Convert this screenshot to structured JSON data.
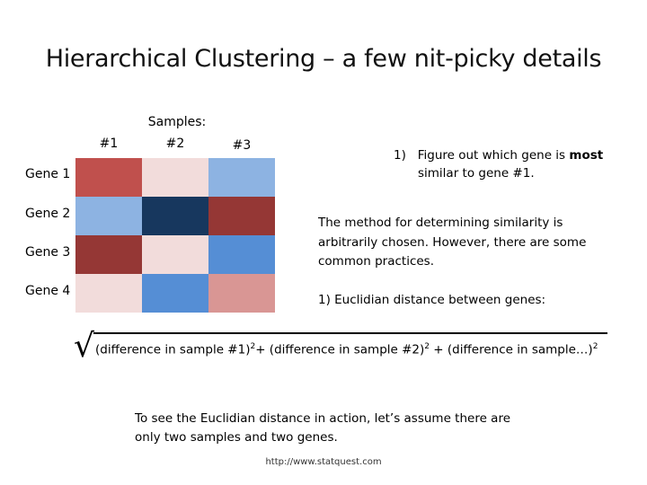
{
  "title": "Hierarchical Clustering – a few nit-picky details",
  "heatmap": {
    "header": "Samples:",
    "columns": [
      "#1",
      "#2",
      "#3"
    ],
    "rows": [
      {
        "label": "Gene 1",
        "colors": [
          "#c0504d",
          "#f2dcdb",
          "#8db3e2"
        ]
      },
      {
        "label": "Gene 2",
        "colors": [
          "#8db3e2",
          "#17375e",
          "#953735"
        ]
      },
      {
        "label": "Gene 3",
        "colors": [
          "#953735",
          "#f2dcdb",
          "#558ed5"
        ]
      },
      {
        "label": "Gene 4",
        "colors": [
          "#f2dcdb",
          "#558ed5",
          "#d99694"
        ]
      }
    ]
  },
  "step1": {
    "number": "1)",
    "text_a": "Figure out which gene is ",
    "text_bold": "most",
    "text_b": "similar to gene #1."
  },
  "method_text": "The method for determining similarity is arbitrarily chosen. However, there are some common practices.",
  "euclid_item": "1)  Euclidian distance between genes:",
  "formula": {
    "sqrt": "√",
    "part1": "(difference in sample #1)",
    "exp1": "2",
    "part2": "+ (difference in sample #2)",
    "exp2": "2",
    "part3": " + (difference in sample…)",
    "exp3": "2"
  },
  "euclid_demo": "To see the Euclidian distance in action, let’s assume there are only two samples and two genes.",
  "source_url": "http://www.statquest.com"
}
